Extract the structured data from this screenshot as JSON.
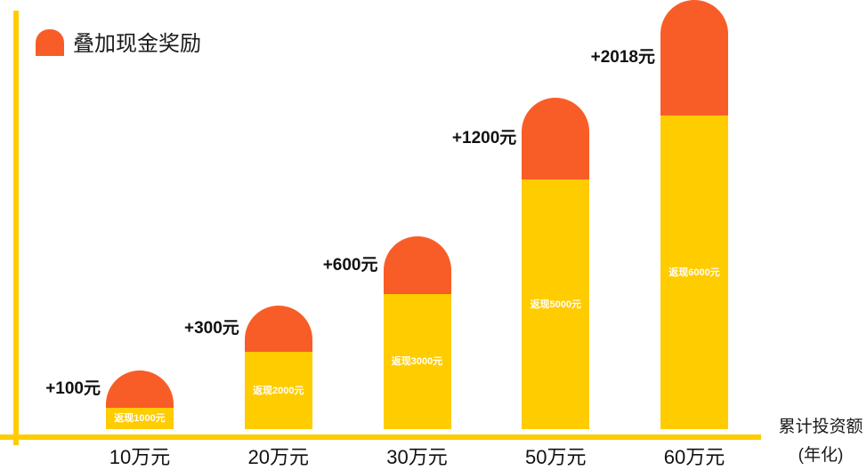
{
  "chart_data": {
    "type": "bar",
    "stacked": true,
    "title": "",
    "categories": [
      "10万元",
      "20万元",
      "30万元",
      "50万元",
      "60万元"
    ],
    "xlabel": [
      "累计投资额",
      "(年化)"
    ],
    "ylabel": "",
    "grid": false,
    "legend_position": "top-left",
    "axis_color": "#FFCC00",
    "series": [
      {
        "values": [
          1000,
          2000,
          3000,
          5000,
          6000
        ],
        "labels": [
          "返现1000元",
          "返现2000元",
          "返现3000元",
          "返现5000元",
          "返现6000元"
        ],
        "color": "#FFCC00"
      },
      {
        "name": "叠加现金奖励",
        "values": [
          100,
          300,
          600,
          1200,
          2018
        ],
        "labels": [
          "+100元",
          "+300元",
          "+600元",
          "+1200元",
          "+2018元"
        ],
        "color": "#F95D27"
      }
    ]
  }
}
